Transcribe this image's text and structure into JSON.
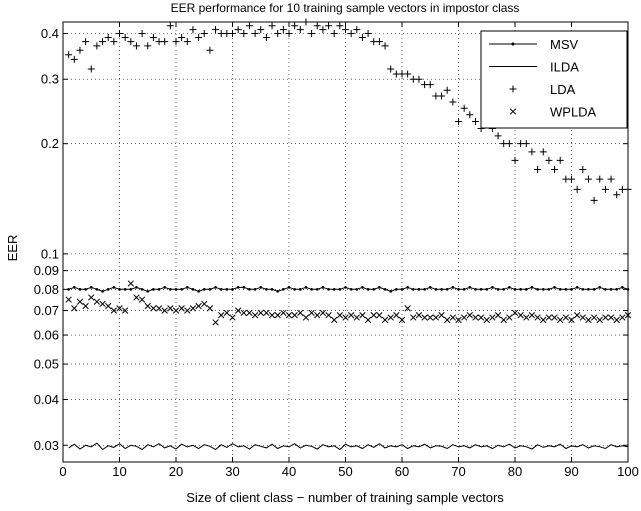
{
  "chart_data": {
    "type": "line",
    "title": "EER performance for 10 training sample vectors in impostor class",
    "xlabel": "Size of client class − number of training sample vectors",
    "ylabel": "EER",
    "xlim": [
      0,
      100
    ],
    "ylim": [
      0.027,
      0.43
    ],
    "yscale": "log",
    "grid": true,
    "legend_position": "top-right",
    "xticks": [
      0,
      10,
      20,
      30,
      40,
      50,
      60,
      70,
      80,
      90,
      100
    ],
    "xtick_labels": [
      "0",
      "10",
      "20",
      "30",
      "40",
      "50",
      "60",
      "70",
      "80",
      "90",
      "100"
    ],
    "yticks": [
      0.03,
      0.04,
      0.05,
      0.06,
      0.07,
      0.08,
      0.09,
      0.1,
      0.2,
      0.3,
      0.4
    ],
    "ytick_labels": [
      "0.03",
      "0.04",
      "0.05",
      "0.06",
      "0.07",
      "0.08",
      "0.09",
      "0.1",
      "0.2",
      "0.3",
      "0.4"
    ],
    "series": [
      {
        "name": "MSV",
        "style": "line-dot",
        "x": [
          1,
          2,
          3,
          4,
          5,
          6,
          7,
          8,
          9,
          10,
          11,
          12,
          13,
          14,
          15,
          16,
          17,
          18,
          19,
          20,
          21,
          22,
          23,
          24,
          25,
          26,
          27,
          28,
          29,
          30,
          31,
          32,
          33,
          34,
          35,
          36,
          37,
          38,
          39,
          40,
          41,
          42,
          43,
          44,
          45,
          46,
          47,
          48,
          49,
          50,
          51,
          52,
          53,
          54,
          55,
          56,
          57,
          58,
          59,
          60,
          61,
          62,
          63,
          64,
          65,
          66,
          67,
          68,
          69,
          70,
          71,
          72,
          73,
          74,
          75,
          76,
          77,
          78,
          79,
          80,
          81,
          82,
          83,
          84,
          85,
          86,
          87,
          88,
          89,
          90,
          91,
          92,
          93,
          94,
          95,
          96,
          97,
          98,
          99,
          100
        ],
        "values": [
          0.08,
          0.081,
          0.08,
          0.08,
          0.081,
          0.08,
          0.079,
          0.08,
          0.081,
          0.08,
          0.08,
          0.08,
          0.081,
          0.08,
          0.079,
          0.08,
          0.08,
          0.081,
          0.08,
          0.08,
          0.08,
          0.081,
          0.08,
          0.079,
          0.08,
          0.08,
          0.081,
          0.08,
          0.08,
          0.08,
          0.081,
          0.081,
          0.08,
          0.08,
          0.081,
          0.08,
          0.08,
          0.079,
          0.08,
          0.081,
          0.08,
          0.08,
          0.081,
          0.08,
          0.08,
          0.081,
          0.08,
          0.08,
          0.08,
          0.081,
          0.08,
          0.08,
          0.081,
          0.08,
          0.08,
          0.081,
          0.08,
          0.079,
          0.08,
          0.08,
          0.081,
          0.08,
          0.08,
          0.08,
          0.081,
          0.08,
          0.08,
          0.08,
          0.081,
          0.08,
          0.08,
          0.081,
          0.08,
          0.08,
          0.08,
          0.081,
          0.08,
          0.08,
          0.081,
          0.08,
          0.08,
          0.08,
          0.081,
          0.08,
          0.08,
          0.08,
          0.081,
          0.08,
          0.08,
          0.08,
          0.081,
          0.08,
          0.08,
          0.08,
          0.081,
          0.08,
          0.08,
          0.08,
          0.081,
          0.08
        ]
      },
      {
        "name": "ILDA",
        "style": "line",
        "x": [
          1,
          2,
          3,
          4,
          5,
          6,
          7,
          8,
          9,
          10,
          11,
          12,
          13,
          14,
          15,
          16,
          17,
          18,
          19,
          20,
          21,
          22,
          23,
          24,
          25,
          26,
          27,
          28,
          29,
          30,
          31,
          32,
          33,
          34,
          35,
          36,
          37,
          38,
          39,
          40,
          41,
          42,
          43,
          44,
          45,
          46,
          47,
          48,
          49,
          50,
          51,
          52,
          53,
          54,
          55,
          56,
          57,
          58,
          59,
          60,
          61,
          62,
          63,
          64,
          65,
          66,
          67,
          68,
          69,
          70,
          71,
          72,
          73,
          74,
          75,
          76,
          77,
          78,
          79,
          80,
          81,
          82,
          83,
          84,
          85,
          86,
          87,
          88,
          89,
          90,
          91,
          92,
          93,
          94,
          95,
          96,
          97,
          98,
          99,
          100
        ],
        "values": [
          0.0295,
          0.0302,
          0.0293,
          0.03,
          0.0297,
          0.0304,
          0.0292,
          0.0299,
          0.0296,
          0.0303,
          0.0294,
          0.03,
          0.0298,
          0.0292,
          0.0301,
          0.0297,
          0.0303,
          0.0295,
          0.0299,
          0.0293,
          0.0302,
          0.0297,
          0.03,
          0.0294,
          0.0301,
          0.0298,
          0.0292,
          0.0301,
          0.0296,
          0.0303,
          0.0297,
          0.0299,
          0.0293,
          0.0301,
          0.0298,
          0.0295,
          0.0302,
          0.0294,
          0.0299,
          0.0297,
          0.0303,
          0.0295,
          0.03,
          0.0298,
          0.0293,
          0.0301,
          0.0297,
          0.0299,
          0.0292,
          0.0302,
          0.0297,
          0.0299,
          0.0294,
          0.0301,
          0.0296,
          0.0303,
          0.0295,
          0.0299,
          0.0297,
          0.0301,
          0.0294,
          0.0299,
          0.0297,
          0.0302,
          0.0295,
          0.0299,
          0.0298,
          0.0294,
          0.0301,
          0.0297,
          0.0299,
          0.0295,
          0.0301,
          0.0297,
          0.0299,
          0.0294,
          0.03,
          0.0297,
          0.0302,
          0.0295,
          0.0299,
          0.0297,
          0.0293,
          0.0301,
          0.0296,
          0.0299,
          0.0297,
          0.0302,
          0.0294,
          0.0299,
          0.0297,
          0.0301,
          0.0295,
          0.0299,
          0.0297,
          0.0294,
          0.0301,
          0.0297,
          0.0299,
          0.0297
        ]
      },
      {
        "name": "LDA",
        "style": "plus",
        "x": [
          1,
          2,
          3,
          4,
          5,
          6,
          7,
          8,
          9,
          10,
          11,
          12,
          13,
          14,
          15,
          16,
          17,
          18,
          19,
          20,
          21,
          22,
          23,
          24,
          25,
          26,
          27,
          28,
          29,
          30,
          31,
          32,
          33,
          34,
          35,
          36,
          37,
          38,
          39,
          40,
          41,
          42,
          43,
          44,
          45,
          46,
          47,
          48,
          49,
          50,
          51,
          52,
          53,
          54,
          55,
          56,
          57,
          58,
          59,
          60,
          61,
          62,
          63,
          64,
          65,
          66,
          67,
          68,
          69,
          70,
          71,
          72,
          73,
          74,
          75,
          76,
          77,
          78,
          79,
          80,
          81,
          82,
          83,
          84,
          85,
          86,
          87,
          88,
          89,
          90,
          91,
          92,
          93,
          94,
          95,
          96,
          97,
          98,
          99,
          100
        ],
        "values": [
          0.35,
          0.34,
          0.36,
          0.38,
          0.32,
          0.37,
          0.38,
          0.39,
          0.38,
          0.4,
          0.39,
          0.38,
          0.37,
          0.4,
          0.37,
          0.39,
          0.38,
          0.38,
          0.42,
          0.38,
          0.39,
          0.38,
          0.41,
          0.39,
          0.4,
          0.36,
          0.41,
          0.4,
          0.4,
          0.4,
          0.41,
          0.4,
          0.42,
          0.4,
          0.41,
          0.39,
          0.42,
          0.4,
          0.41,
          0.4,
          0.42,
          0.41,
          0.43,
          0.4,
          0.42,
          0.41,
          0.42,
          0.4,
          0.42,
          0.41,
          0.4,
          0.41,
          0.39,
          0.4,
          0.38,
          0.38,
          0.37,
          0.32,
          0.31,
          0.31,
          0.31,
          0.3,
          0.3,
          0.29,
          0.29,
          0.27,
          0.27,
          0.28,
          0.26,
          0.23,
          0.25,
          0.24,
          0.23,
          0.22,
          0.23,
          0.22,
          0.21,
          0.2,
          0.2,
          0.18,
          0.2,
          0.2,
          0.19,
          0.17,
          0.19,
          0.18,
          0.17,
          0.18,
          0.16,
          0.16,
          0.15,
          0.17,
          0.16,
          0.14,
          0.16,
          0.15,
          0.16,
          0.145,
          0.15,
          0.15
        ]
      },
      {
        "name": "WPLDA",
        "style": "x",
        "x": [
          1,
          2,
          3,
          4,
          5,
          6,
          7,
          8,
          9,
          10,
          11,
          12,
          13,
          14,
          15,
          16,
          17,
          18,
          19,
          20,
          21,
          22,
          23,
          24,
          25,
          26,
          27,
          28,
          29,
          30,
          31,
          32,
          33,
          34,
          35,
          36,
          37,
          38,
          39,
          40,
          41,
          42,
          43,
          44,
          45,
          46,
          47,
          48,
          49,
          50,
          51,
          52,
          53,
          54,
          55,
          56,
          57,
          58,
          59,
          60,
          61,
          62,
          63,
          64,
          65,
          66,
          67,
          68,
          69,
          70,
          71,
          72,
          73,
          74,
          75,
          76,
          77,
          78,
          79,
          80,
          81,
          82,
          83,
          84,
          85,
          86,
          87,
          88,
          89,
          90,
          91,
          92,
          93,
          94,
          95,
          96,
          97,
          98,
          99,
          100
        ],
        "values": [
          0.075,
          0.071,
          0.074,
          0.072,
          0.076,
          0.074,
          0.073,
          0.072,
          0.07,
          0.071,
          0.07,
          0.083,
          0.076,
          0.075,
          0.072,
          0.071,
          0.071,
          0.07,
          0.071,
          0.07,
          0.071,
          0.07,
          0.071,
          0.072,
          0.073,
          0.071,
          0.065,
          0.068,
          0.069,
          0.067,
          0.07,
          0.069,
          0.069,
          0.068,
          0.069,
          0.069,
          0.068,
          0.068,
          0.069,
          0.068,
          0.068,
          0.069,
          0.067,
          0.069,
          0.068,
          0.069,
          0.068,
          0.066,
          0.068,
          0.067,
          0.068,
          0.067,
          0.068,
          0.066,
          0.068,
          0.068,
          0.066,
          0.067,
          0.068,
          0.066,
          0.071,
          0.067,
          0.068,
          0.067,
          0.067,
          0.067,
          0.068,
          0.066,
          0.067,
          0.066,
          0.067,
          0.068,
          0.067,
          0.067,
          0.066,
          0.067,
          0.068,
          0.066,
          0.067,
          0.069,
          0.068,
          0.067,
          0.068,
          0.067,
          0.066,
          0.067,
          0.067,
          0.066,
          0.067,
          0.066,
          0.068,
          0.067,
          0.066,
          0.067,
          0.066,
          0.067,
          0.067,
          0.066,
          0.067,
          0.068
        ]
      }
    ]
  }
}
